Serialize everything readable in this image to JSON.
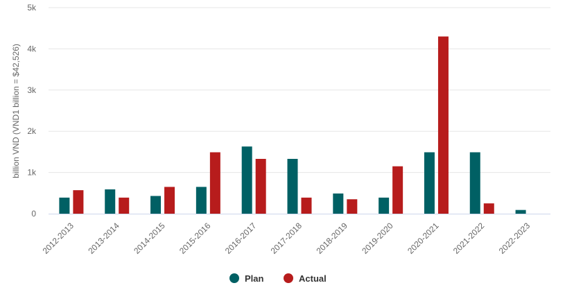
{
  "chart_data": {
    "type": "bar",
    "title": "",
    "xlabel": "",
    "ylabel": "billion VND (VND1 billion = $42,526)",
    "ylim": [
      0,
      5000
    ],
    "yticks": [
      0,
      1000,
      2000,
      3000,
      4000,
      5000
    ],
    "ytick_labels": [
      "0",
      "1k",
      "2k",
      "3k",
      "4k",
      "5k"
    ],
    "grid": true,
    "legend_position": "bottom-center",
    "categories": [
      "2012-2013",
      "2013-2014",
      "2014-2015",
      "2015-2016",
      "2016-2017",
      "2017-2018",
      "2018-2019",
      "2019-2020",
      "2020-2021",
      "2021-2022",
      "2022-2023"
    ],
    "series": [
      {
        "name": "Plan",
        "color": "#006064",
        "values": [
          390,
          590,
          430,
          650,
          1630,
          1330,
          490,
          390,
          1490,
          1490,
          90
        ]
      },
      {
        "name": "Actual",
        "color": "#b71c1c",
        "values": [
          570,
          390,
          650,
          1490,
          1330,
          390,
          350,
          1150,
          4300,
          250,
          null
        ]
      }
    ]
  }
}
